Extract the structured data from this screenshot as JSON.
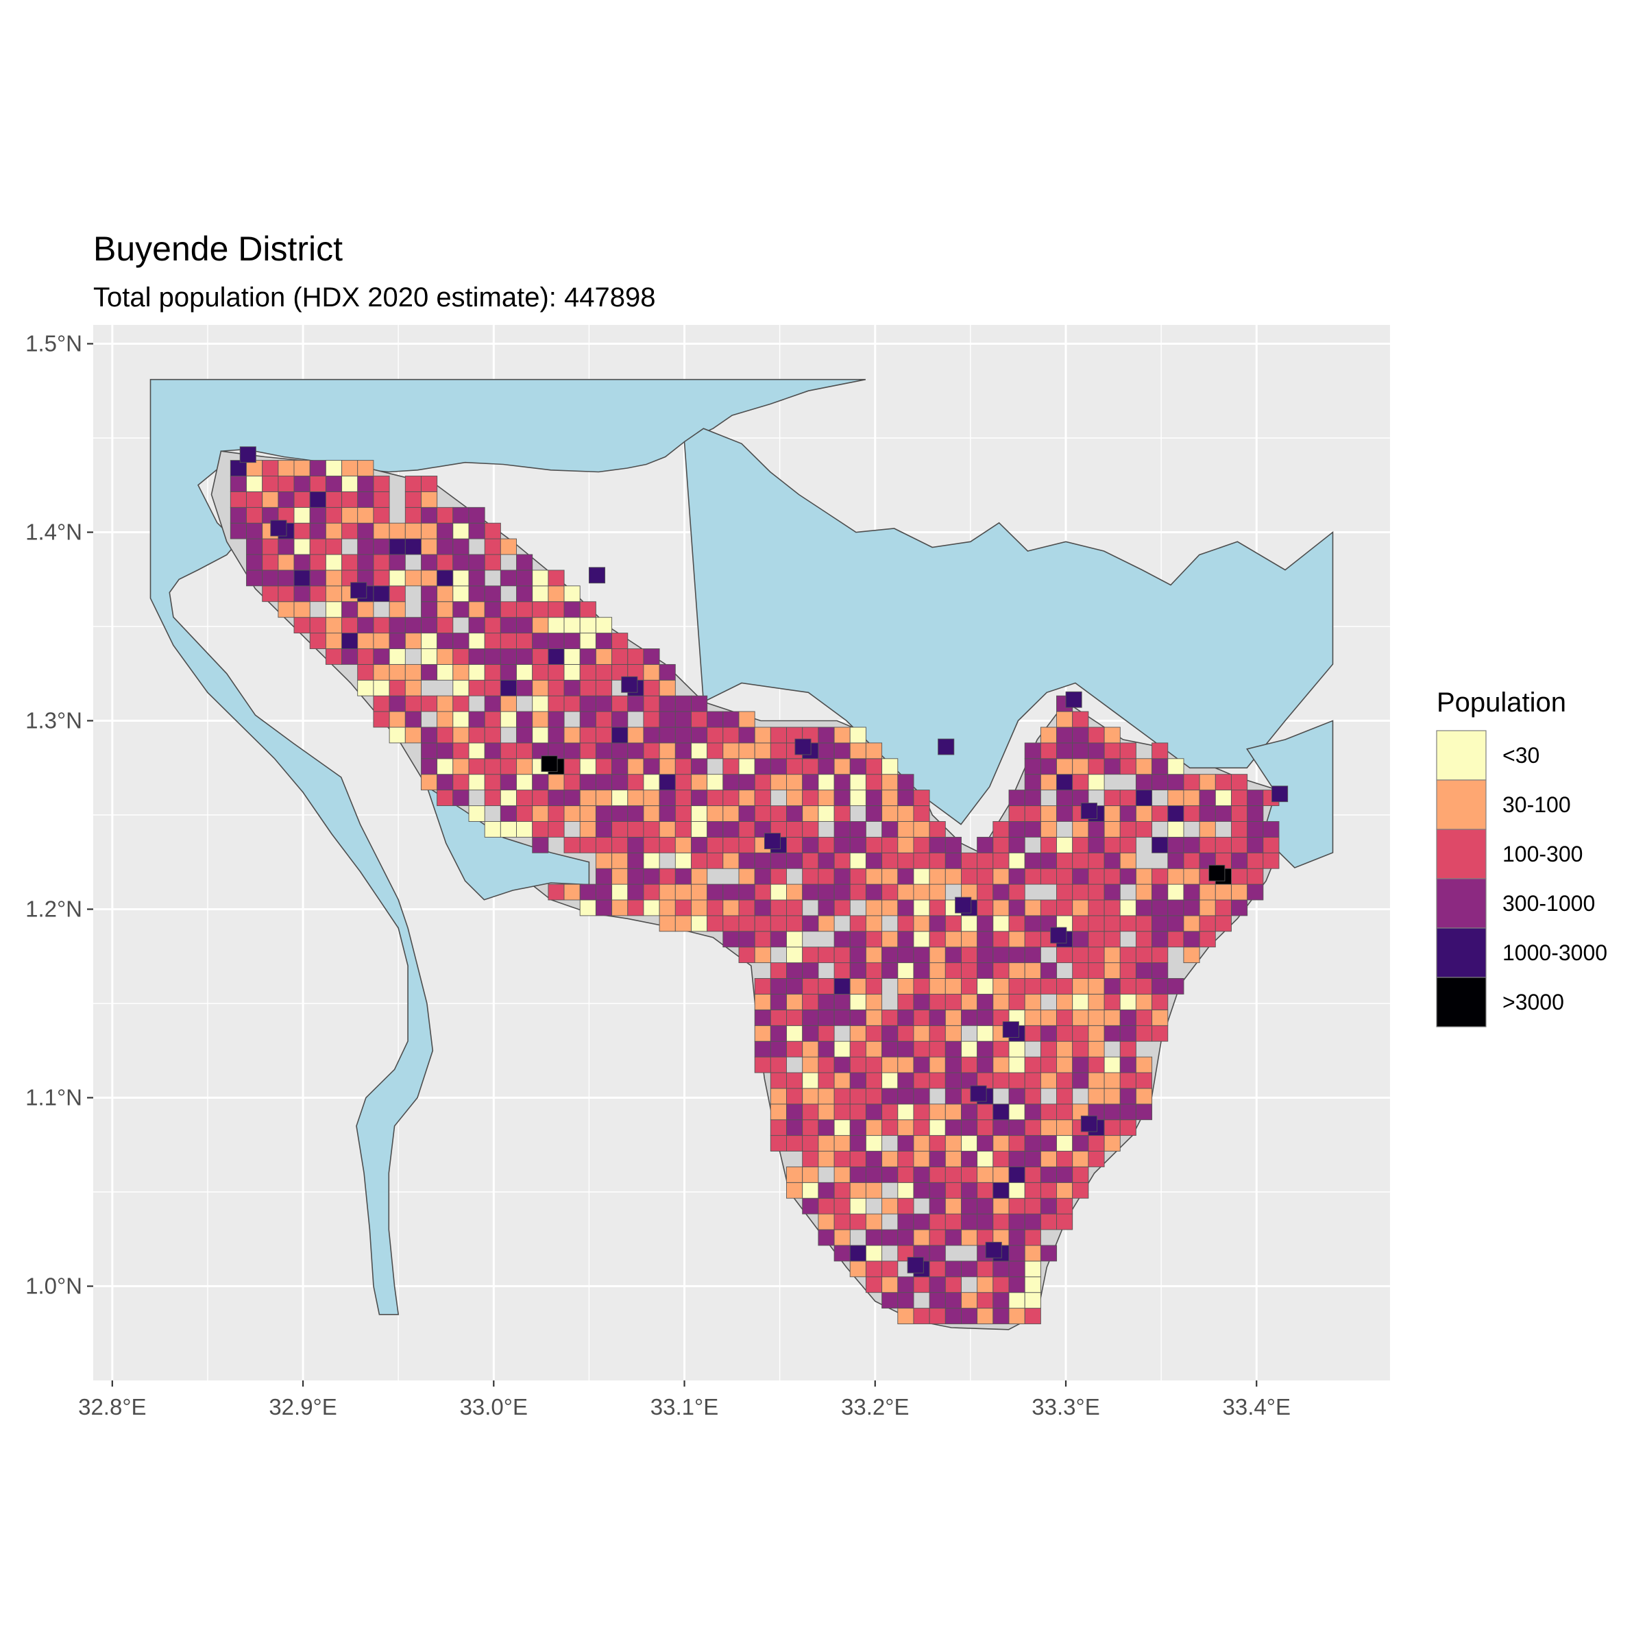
{
  "title": "Buyende District",
  "subtitle": "Total population (HDX 2020 estimate): 447898",
  "chart_data": {
    "type": "heatmap",
    "title": "Buyende District",
    "subtitle": "Total population (HDX 2020 estimate): 447898",
    "total_population": 447898,
    "x_axis": {
      "ticks": [
        32.8,
        32.9,
        33.0,
        33.1,
        33.2,
        33.3,
        33.4
      ],
      "tick_labels": [
        "32.8°E",
        "32.9°E",
        "33.0°E",
        "33.1°E",
        "33.2°E",
        "33.3°E",
        "33.4°E"
      ],
      "range": [
        32.79,
        33.47
      ]
    },
    "y_axis": {
      "ticks": [
        1.0,
        1.1,
        1.2,
        1.3,
        1.4,
        1.5
      ],
      "tick_labels": [
        "1.0°N",
        "1.1°N",
        "1.2°N",
        "1.3°N",
        "1.4°N",
        "1.5°N"
      ],
      "range": [
        0.95,
        1.51
      ]
    },
    "grid": true,
    "legend": {
      "title": "Population",
      "position": "right",
      "classes": [
        {
          "label": "<30",
          "color": "#FCFDBF"
        },
        {
          "label": "30-100",
          "color": "#FEA772"
        },
        {
          "label": "100-300",
          "color": "#DE4968"
        },
        {
          "label": "300-1000",
          "color": "#8C2981"
        },
        {
          "label": "1000-3000",
          "color": "#3B0F70"
        },
        {
          "label": ">3000",
          "color": "#000004"
        }
      ]
    },
    "colors": {
      "panel_background": "#EBEBEB",
      "gridline": "#FFFFFF",
      "water": "#ADD8E6",
      "district_land": "#D3D3D3",
      "outline": "#4D4D4D"
    },
    "cell_size_deg": 0.00833,
    "highlight_cells": [
      {
        "lon": 32.867,
        "lat": 1.437,
        "class": 4
      },
      {
        "lon": 33.025,
        "lat": 1.273,
        "class": 5
      },
      {
        "lon": 33.375,
        "lat": 1.215,
        "class": 5
      },
      {
        "lon": 33.067,
        "lat": 1.315,
        "class": 4
      },
      {
        "lon": 33.05,
        "lat": 1.373,
        "class": 4
      },
      {
        "lon": 33.158,
        "lat": 1.282,
        "class": 4
      },
      {
        "lon": 33.233,
        "lat": 1.282,
        "class": 4
      },
      {
        "lon": 33.142,
        "lat": 1.232,
        "class": 4
      },
      {
        "lon": 33.3,
        "lat": 1.307,
        "class": 4
      },
      {
        "lon": 33.308,
        "lat": 1.248,
        "class": 4
      },
      {
        "lon": 33.408,
        "lat": 1.257,
        "class": 4
      },
      {
        "lon": 33.292,
        "lat": 1.182,
        "class": 4
      },
      {
        "lon": 33.242,
        "lat": 1.198,
        "class": 4
      },
      {
        "lon": 33.267,
        "lat": 1.132,
        "class": 4
      },
      {
        "lon": 33.25,
        "lat": 1.098,
        "class": 4
      },
      {
        "lon": 33.308,
        "lat": 1.082,
        "class": 4
      },
      {
        "lon": 33.258,
        "lat": 1.015,
        "class": 4
      },
      {
        "lon": 33.217,
        "lat": 1.007,
        "class": 4
      },
      {
        "lon": 32.883,
        "lat": 1.398,
        "class": 4
      },
      {
        "lon": 32.925,
        "lat": 1.365,
        "class": 4
      }
    ]
  }
}
